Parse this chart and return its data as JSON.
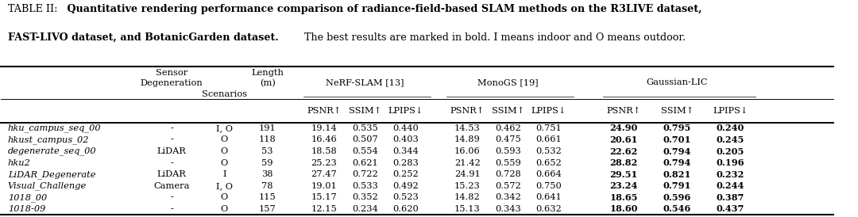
{
  "caption_bold": "Quantitative rendering performance comparison of radiance-field-based SLAM methods on the R3LIVE dataset,",
  "caption_bold2": "FAST-LIVO dataset, and BotanicGarden dataset.",
  "caption_normal": " The best results are marked in bold. I means indoor and O means outdoor.",
  "rows": [
    [
      "hku_campus_seq_00",
      "-",
      "I, O",
      "191",
      "19.14",
      "0.535",
      "0.440",
      "14.53",
      "0.462",
      "0.751",
      "24.90",
      "0.795",
      "0.240"
    ],
    [
      "hkust_campus_02",
      "-",
      "O",
      "118",
      "16.46",
      "0.507",
      "0.403",
      "14.89",
      "0.475",
      "0.661",
      "20.61",
      "0.701",
      "0.245"
    ],
    [
      "degenerate_seq_00",
      "LiDAR",
      "O",
      "53",
      "18.58",
      "0.554",
      "0.344",
      "16.06",
      "0.593",
      "0.532",
      "22.62",
      "0.794",
      "0.205"
    ],
    [
      "hku2",
      "-",
      "O",
      "59",
      "25.23",
      "0.621",
      "0.283",
      "21.42",
      "0.559",
      "0.652",
      "28.82",
      "0.794",
      "0.196"
    ],
    [
      "LiDAR_Degenerate",
      "LiDAR",
      "I",
      "38",
      "27.47",
      "0.722",
      "0.252",
      "24.91",
      "0.728",
      "0.664",
      "29.51",
      "0.821",
      "0.232"
    ],
    [
      "Visual_Challenge",
      "Camera",
      "I, O",
      "78",
      "19.01",
      "0.533",
      "0.492",
      "15.23",
      "0.572",
      "0.750",
      "23.24",
      "0.791",
      "0.244"
    ],
    [
      "1018_00",
      "-",
      "O",
      "115",
      "15.17",
      "0.352",
      "0.523",
      "14.82",
      "0.342",
      "0.641",
      "18.65",
      "0.596",
      "0.387"
    ],
    [
      "1018-09",
      "-",
      "O",
      "157",
      "12.15",
      "0.234",
      "0.620",
      "15.13",
      "0.343",
      "0.632",
      "18.60",
      "0.546",
      "0.437"
    ]
  ],
  "bold_cols": [
    10,
    11,
    12
  ],
  "background_color": "#ffffff",
  "fontsize_caption": 9.2,
  "fontsize_table": 8.2
}
